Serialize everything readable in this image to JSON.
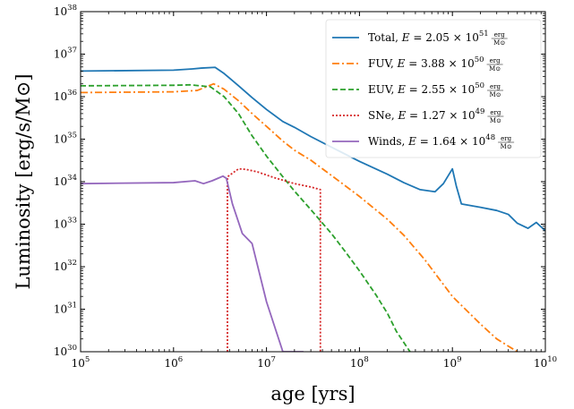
{
  "chart_data": {
    "type": "line",
    "xlabel": "age [yrs]",
    "ylabel": "Luminosity [erg/s/M⊙]",
    "xscale": "log",
    "yscale": "log",
    "xlim": [
      100000,
      10000000000
    ],
    "ylim": [
      1e+30,
      1e+38
    ],
    "x_ticks": [
      {
        "base": "10",
        "exp": "5"
      },
      {
        "base": "10",
        "exp": "6"
      },
      {
        "base": "10",
        "exp": "7"
      },
      {
        "base": "10",
        "exp": "8"
      },
      {
        "base": "10",
        "exp": "9"
      },
      {
        "base": "10",
        "exp": "10"
      }
    ],
    "y_ticks": [
      {
        "base": "10",
        "exp": "30"
      },
      {
        "base": "10",
        "exp": "31"
      },
      {
        "base": "10",
        "exp": "32"
      },
      {
        "base": "10",
        "exp": "33"
      },
      {
        "base": "10",
        "exp": "34"
      },
      {
        "base": "10",
        "exp": "35"
      },
      {
        "base": "10",
        "exp": "36"
      },
      {
        "base": "10",
        "exp": "37"
      },
      {
        "base": "10",
        "exp": "38"
      }
    ],
    "legend_position": "top-right",
    "grid": false,
    "series": [
      {
        "name": "Total",
        "energy": {
          "mantissa": "2.05",
          "exp": "51"
        },
        "unit_num": "erg",
        "unit_den": "M⊙",
        "color": "#1f77b4",
        "dash": "solid",
        "x": [
          100000,
          1000000,
          1600000,
          2000000,
          2800000,
          3500000,
          5000000,
          7000000,
          10000000,
          15000000,
          20000000,
          30000000,
          50000000,
          100000000,
          200000000,
          300000000,
          450000000,
          650000000,
          800000000,
          1000000000,
          1100000000,
          1250000000,
          2000000000,
          3000000000,
          4000000000,
          5000000000,
          6500000000,
          8000000000,
          10000000000
        ],
        "y": [
          4e+36,
          4.2e+36,
          4.5e+36,
          4.7e+36,
          4.9e+36,
          3.5e+36,
          1.8e+36,
          9.5e+35,
          5e+35,
          2.6e+35,
          1.9e+35,
          1.15e+35,
          6.5e+34,
          3e+34,
          1.5e+34,
          9.5e+33,
          6.5e+33,
          5.8e+33,
          9e+33,
          2e+34,
          8e+33,
          3e+33,
          2.5e+33,
          2.1e+33,
          1.7e+33,
          1.05e+33,
          8e+32,
          1.1e+33,
          7e+32
        ]
      },
      {
        "name": "FUV",
        "energy": {
          "mantissa": "3.88",
          "exp": "50"
        },
        "unit_num": "erg",
        "unit_den": "M⊙",
        "color": "#ff7f0e",
        "dash": "dashdot",
        "x": [
          100000,
          1000000,
          1800000,
          2700000,
          3500000,
          5000000,
          7000000,
          10000000,
          15000000,
          20000000,
          30000000,
          50000000,
          100000000,
          200000000,
          300000000,
          500000000,
          1000000000,
          2000000000,
          3000000000,
          5000000000
        ],
        "y": [
          1.25e+36,
          1.3e+36,
          1.4e+36,
          2e+36,
          1.5e+36,
          8e+35,
          4e+35,
          2e+35,
          9e+34,
          5.5e+34,
          3.2e+34,
          1.4e+34,
          4.5e+33,
          1.3e+33,
          5.5e+32,
          1.5e+32,
          2e+31,
          4.5e+30,
          2e+30,
          1e+30
        ]
      },
      {
        "name": "EUV",
        "energy": {
          "mantissa": "2.55",
          "exp": "50"
        },
        "unit_num": "erg",
        "unit_den": "M⊙",
        "color": "#2ca02c",
        "dash": "dashed",
        "x": [
          100000,
          1000000,
          1500000,
          2500000,
          3500000,
          5000000,
          7000000,
          10000000,
          15000000,
          20000000,
          30000000,
          50000000,
          70000000,
          100000000,
          150000000,
          200000000,
          250000000,
          350000000
        ],
        "y": [
          1.8e+36,
          1.85e+36,
          1.9e+36,
          1.7e+36,
          1e+36,
          4e+35,
          1.2e+35,
          4e+34,
          1.3e+34,
          6e+33,
          2.2e+33,
          6e+32,
          2.3e+32,
          8e+31,
          2.2e+31,
          8e+30,
          3e+30,
          1e+30
        ]
      },
      {
        "name": "SNe",
        "energy": {
          "mantissa": "1.27",
          "exp": "49"
        },
        "unit_num": "erg",
        "unit_den": "M⊙",
        "color": "#d62728",
        "dash": "dotted",
        "x": [
          3800000,
          3800000,
          4500000,
          5000000,
          6000000,
          8000000,
          12000000,
          20000000,
          30000000,
          38000000,
          38000000
        ],
        "y": [
          1e+30,
          1.3e+34,
          1.7e+34,
          2e+34,
          1.95e+34,
          1.7e+34,
          1.25e+34,
          9e+33,
          7.5e+33,
          6.5e+33,
          1e+30
        ]
      },
      {
        "name": "Winds",
        "energy": {
          "mantissa": "1.64",
          "exp": "48"
        },
        "unit_num": "erg",
        "unit_den": "M⊙",
        "color": "#9467bd",
        "dash": "solid",
        "x": [
          100000,
          1000000,
          1700000,
          2100000,
          2600000,
          3000000,
          3400000,
          3700000,
          4300000,
          5500000,
          7000000,
          10000000,
          15000000,
          20000000,
          25000000
        ],
        "y": [
          9e+33,
          9.5e+33,
          1.05e+34,
          9e+33,
          1.05e+34,
          1.2e+34,
          1.35e+34,
          1.2e+34,
          3e+33,
          6e+32,
          3.5e+32,
          1.5e+31,
          1e+30,
          1e+30,
          1e+30
        ]
      }
    ]
  }
}
